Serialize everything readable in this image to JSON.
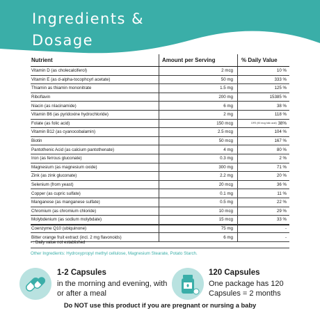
{
  "header": {
    "title_line1": "Ingredients &",
    "title_line2": "Dosage",
    "color": "#3aaea8"
  },
  "table": {
    "columns": [
      "Nutrient",
      "Amount per Serving",
      "% Daily Value"
    ],
    "rows": [
      {
        "nutrient": "Vitamin D (as cholecalciferol)",
        "amount": "2 mcg",
        "dv": "10 %",
        "note": ""
      },
      {
        "nutrient": "Vitamin E (as d-alpha-tocophcyrl acetate)",
        "amount": "50 mg",
        "dv": "333 %",
        "note": ""
      },
      {
        "nutrient": "Thiamin as thiamin mononitrate",
        "amount": "1.5 mg",
        "dv": "125 %",
        "note": ""
      },
      {
        "nutrient": "Riboflavin",
        "amount": "200 mg",
        "dv": "15385 %",
        "note": ""
      },
      {
        "nutrient": "Niacin (as nIacinamide)",
        "amount": "6 mg",
        "dv": "38 %",
        "note": ""
      },
      {
        "nutrient": "Vitamin B6 (as pyridoxine hydrochloride)",
        "amount": "2 mg",
        "dv": "118 %",
        "note": ""
      },
      {
        "nutrient": "Folate (as folic acid)",
        "amount": "150 mcg",
        "dv": "38%",
        "note": "DFE (90 mcg folic acid)"
      },
      {
        "nutrient": "Vitamin B12 (as cyanocobalamin)",
        "amount": "2.5 mcg",
        "dv": "104 %",
        "note": ""
      },
      {
        "nutrient": "Biotin",
        "amount": "50 mcg",
        "dv": "167 %",
        "note": ""
      },
      {
        "nutrient": "Pantothenic Acid (as calcium pantothenate)",
        "amount": "4 mg",
        "dv": "80 %",
        "note": ""
      },
      {
        "nutrient": "Iron (as ferrous gluconate)",
        "amount": "0.3 mg",
        "dv": "2 %",
        "note": ""
      },
      {
        "nutrient": "Magnesium (as magnesium oxide)",
        "amount": "300 mg",
        "dv": "71 %",
        "note": ""
      },
      {
        "nutrient": "Zink (as zink gluconate)",
        "amount": "2.2 mg",
        "dv": "20 %",
        "note": ""
      },
      {
        "nutrient": "Selenium (from yeast)",
        "amount": "20 mcg",
        "dv": "36 %",
        "note": ""
      },
      {
        "nutrient": "Copper (as cupric sulfate)",
        "amount": "0.1 mg",
        "dv": "11 %",
        "note": ""
      },
      {
        "nutrient": "Manganese (as manganese sulfate)",
        "amount": "0.5 mg",
        "dv": "22 %",
        "note": ""
      },
      {
        "nutrient": "Chromium (as chromium chloride)",
        "amount": "10 mcg",
        "dv": "29 %",
        "note": ""
      },
      {
        "nutrient": "Molybdenium (as sodium molybdate)",
        "amount": "15 mcg",
        "dv": "33 %",
        "note": ""
      }
    ],
    "extra_rows": [
      {
        "nutrient": "Coenzyme Q10 (ubiquinone)",
        "amount": "75 mg",
        "dv": "-"
      },
      {
        "nutrient": "Bitter orange fruit extract (incl. 2 mg flavonoids)",
        "amount": "6 mg",
        "dv": "-"
      }
    ]
  },
  "footnote": "- : Daily value not established",
  "other_ingredients": "Other Ingredients: Hydroxypropyl methyl cellulose, Magnesium Stearate, Potato Starch.",
  "info": {
    "dose_title": "1-2 Capsules",
    "dose_body": "in the morning and evening, with or after a meal",
    "pack_title": "120 Capsules",
    "pack_body": "One package has 120 Capsules = 2 months"
  },
  "warning": "Do NOT use this product if you are pregnant or nursing a baby",
  "icons": {
    "dose": "capsules-icon",
    "pack": "pill-bottle-icon"
  }
}
